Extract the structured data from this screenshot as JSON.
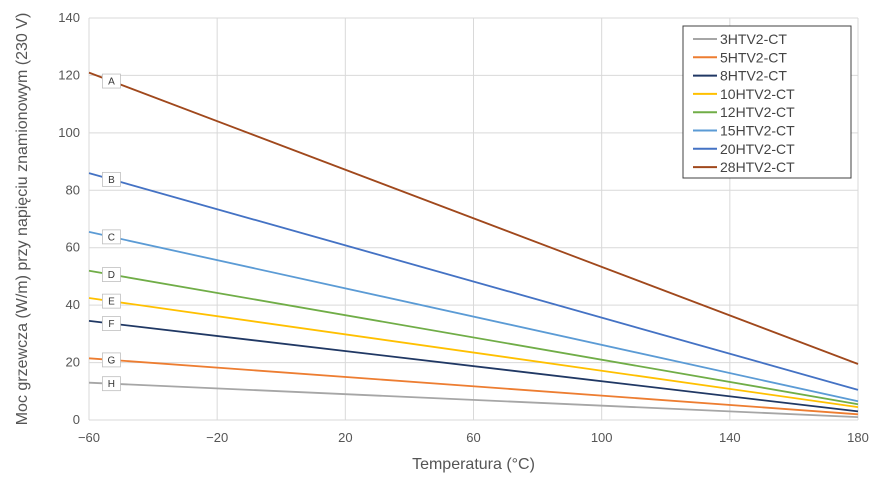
{
  "chart_data": {
    "type": "line",
    "title": "",
    "xlabel": "Temperatura (°C)",
    "ylabel": "Moc grzewcza (W/m) przy napięciu znamionowym (230 V)",
    "xlim": [
      -60,
      180
    ],
    "ylim": [
      0,
      140
    ],
    "x_ticks": [
      "−60",
      "−20",
      "20",
      "60",
      "100",
      "140",
      "180"
    ],
    "y_ticks": [
      "0",
      "20",
      "40",
      "60",
      "80",
      "100",
      "120",
      "140"
    ],
    "grid": true,
    "legend_position": "top-right",
    "series": [
      {
        "name": "3HTV2-CT",
        "label": "H",
        "color": "#a6a6a6",
        "x": [
          -60,
          180
        ],
        "y": [
          13,
          1
        ]
      },
      {
        "name": "5HTV2-CT",
        "label": "G",
        "color": "#ed7d31",
        "x": [
          -60,
          180
        ],
        "y": [
          21.5,
          2
        ]
      },
      {
        "name": "8HTV2-CT",
        "label": "F",
        "color": "#203864",
        "x": [
          -60,
          180
        ],
        "y": [
          34.5,
          3
        ]
      },
      {
        "name": "10HTV2-CT",
        "label": "E",
        "color": "#ffc000",
        "x": [
          -60,
          180
        ],
        "y": [
          42.5,
          4.5
        ]
      },
      {
        "name": "12HTV2-CT",
        "label": "D",
        "color": "#70ad47",
        "x": [
          -60,
          180
        ],
        "y": [
          52,
          5.5
        ]
      },
      {
        "name": "15HTV2-CT",
        "label": "C",
        "color": "#5b9bd5",
        "x": [
          -60,
          180
        ],
        "y": [
          65.5,
          6.5
        ]
      },
      {
        "name": "20HTV2-CT",
        "label": "B",
        "color": "#4472c4",
        "x": [
          -60,
          180
        ],
        "y": [
          86,
          10.5
        ]
      },
      {
        "name": "28HTV2-CT",
        "label": "A",
        "color": "#a0481c",
        "x": [
          -60,
          180
        ],
        "y": [
          121,
          19.5
        ]
      }
    ]
  }
}
